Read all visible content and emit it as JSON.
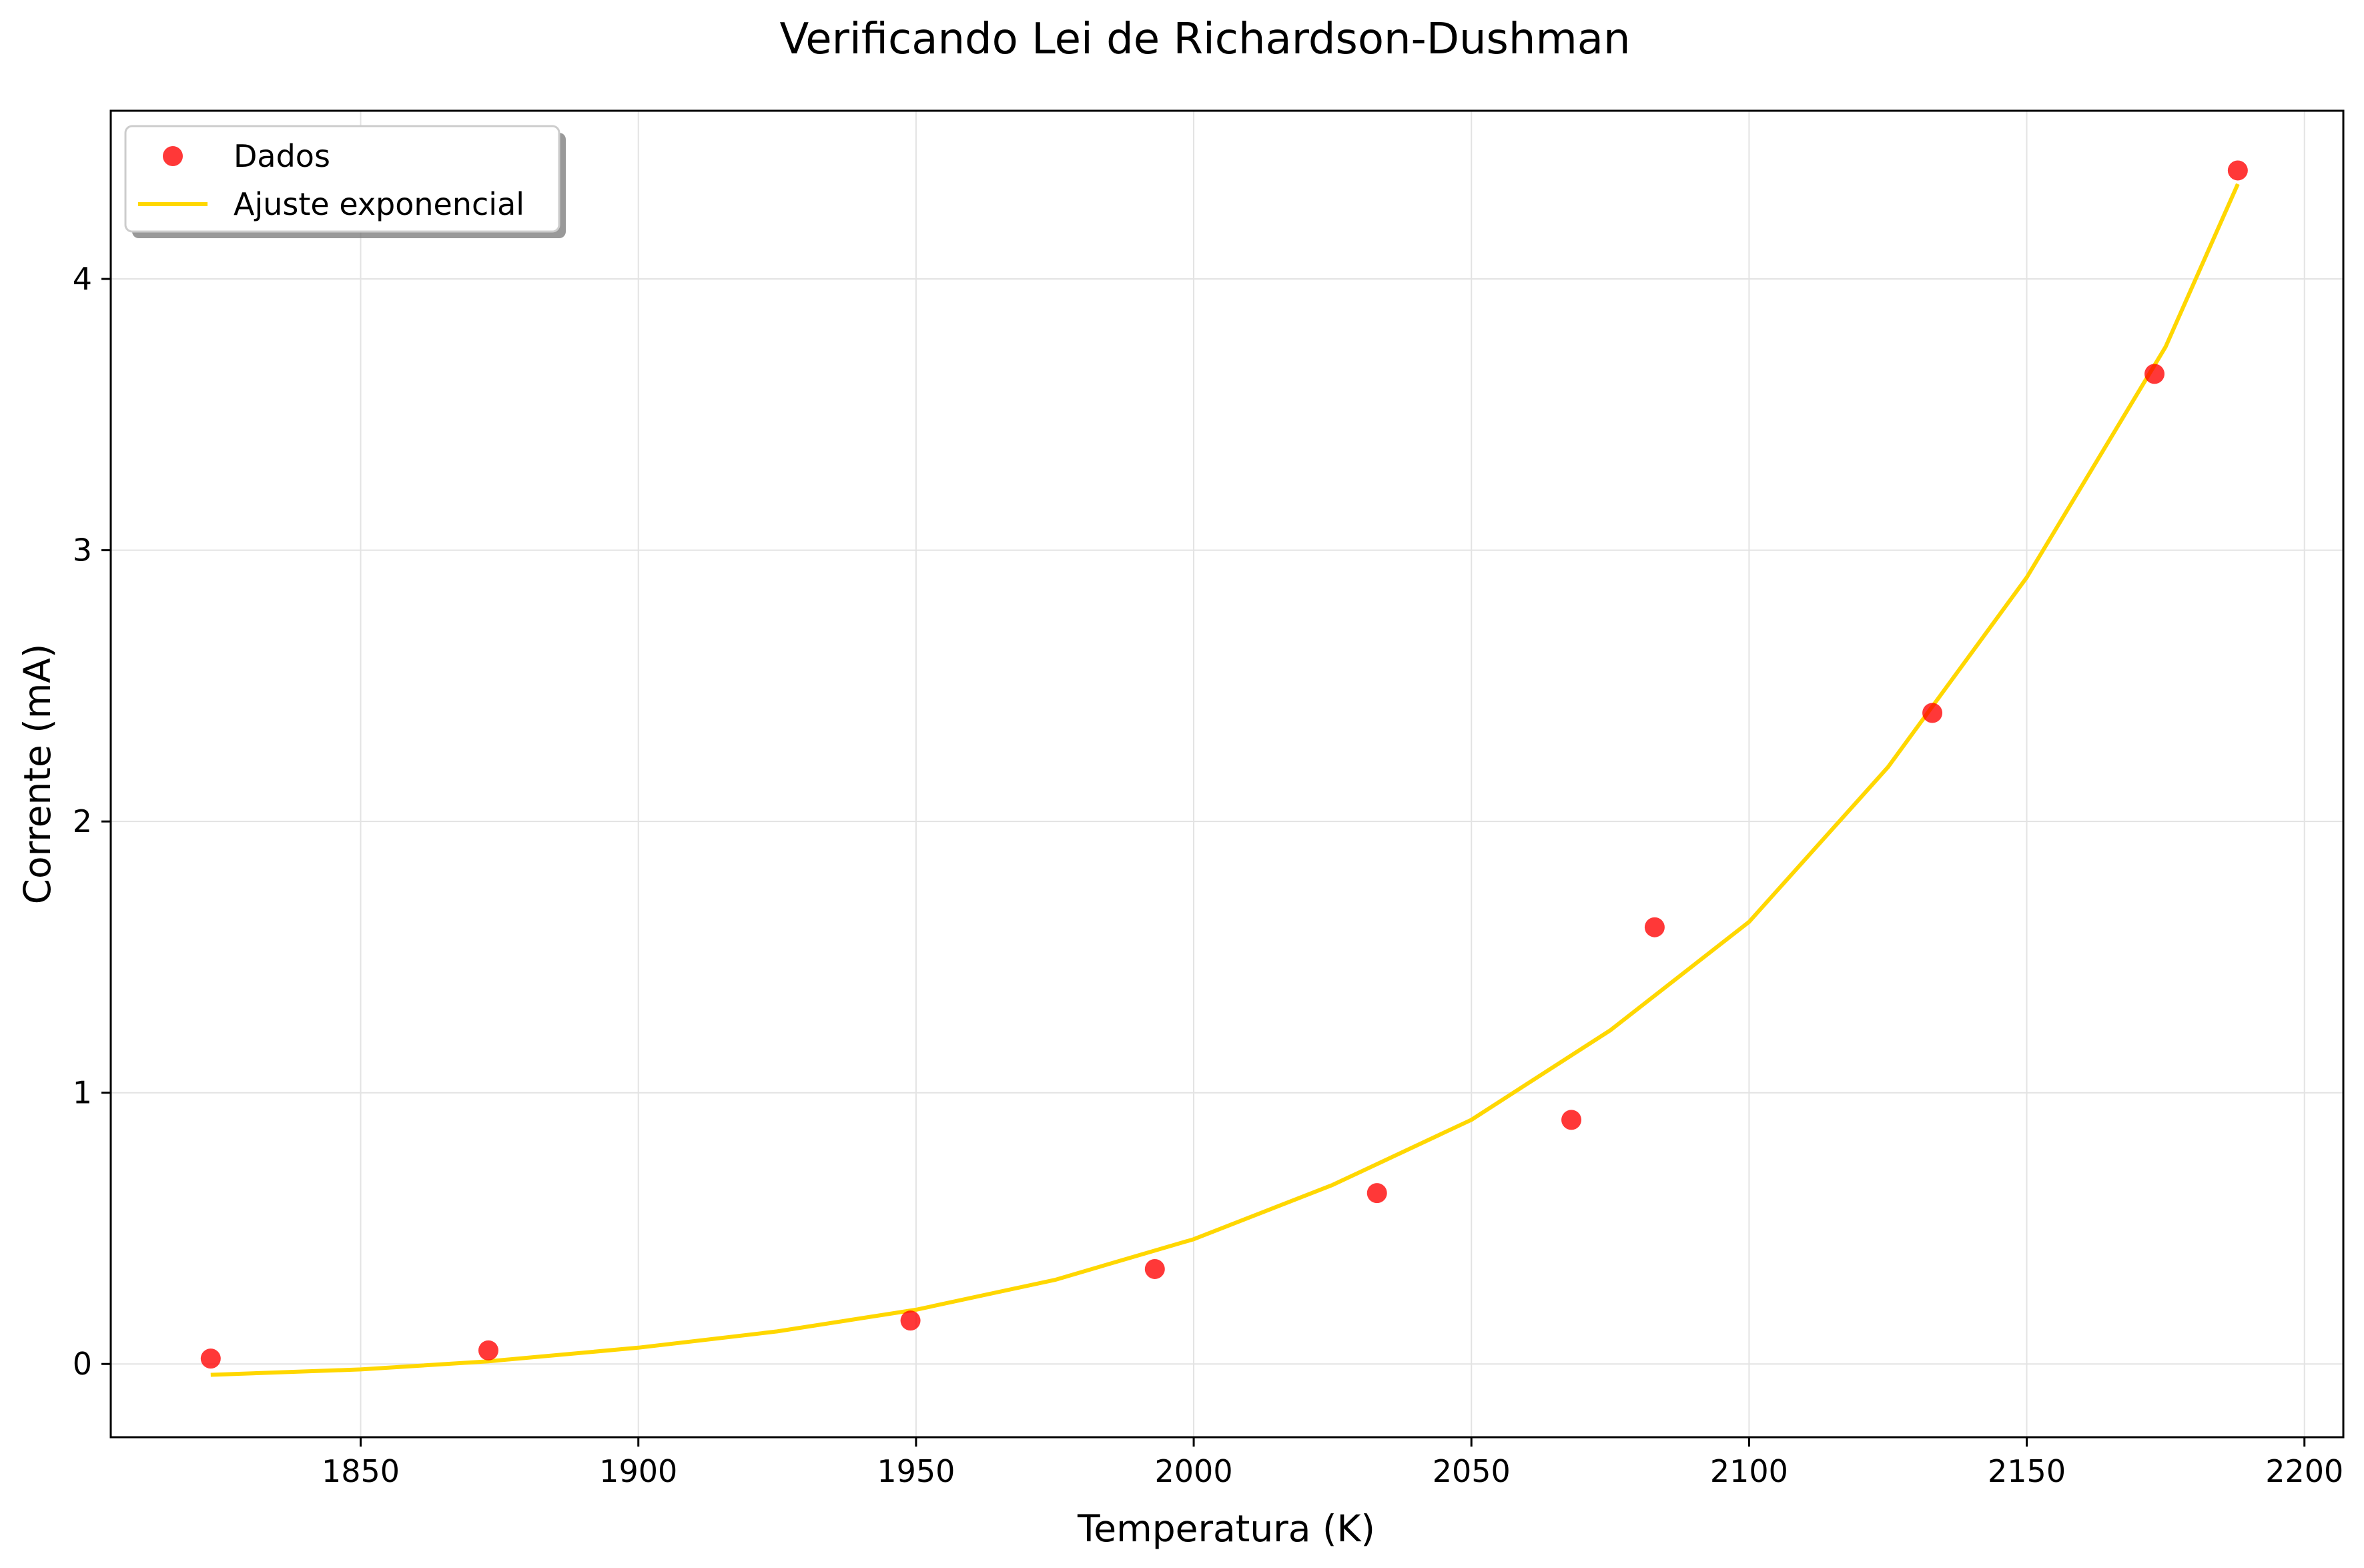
{
  "chart_data": {
    "type": "scatter",
    "title": "Verificando Lei de Richardson-Dushman",
    "xlabel": "Temperatura (K)",
    "ylabel": "Corrente (mA)",
    "xlim": [
      1805,
      2207
    ],
    "ylim": [
      -0.27,
      4.62
    ],
    "x_ticks": [
      1850,
      1900,
      1950,
      2000,
      2050,
      2100,
      2150,
      2200
    ],
    "y_ticks": [
      0,
      1,
      2,
      3,
      4
    ],
    "grid": true,
    "legend_position": "top-left",
    "series": [
      {
        "name": "Dados",
        "kind": "scatter",
        "color": "#ff0000",
        "x": [
          1823,
          1873,
          1949,
          1993,
          2033,
          2068,
          2083,
          2133,
          2173,
          2188
        ],
        "y": [
          0.02,
          0.05,
          0.16,
          0.35,
          0.63,
          0.9,
          1.61,
          2.4,
          3.65,
          4.4
        ]
      },
      {
        "name": "Ajuste exponencial",
        "kind": "line",
        "color": "#ffd700",
        "x": [
          1823,
          1850,
          1873,
          1900,
          1925,
          1950,
          1975,
          2000,
          2025,
          2050,
          2075,
          2100,
          2125,
          2150,
          2175,
          2188
        ],
        "y": [
          -0.04,
          -0.02,
          0.01,
          0.06,
          0.12,
          0.2,
          0.31,
          0.46,
          0.66,
          0.9,
          1.23,
          1.63,
          2.2,
          2.9,
          3.75,
          4.35
        ]
      }
    ]
  }
}
